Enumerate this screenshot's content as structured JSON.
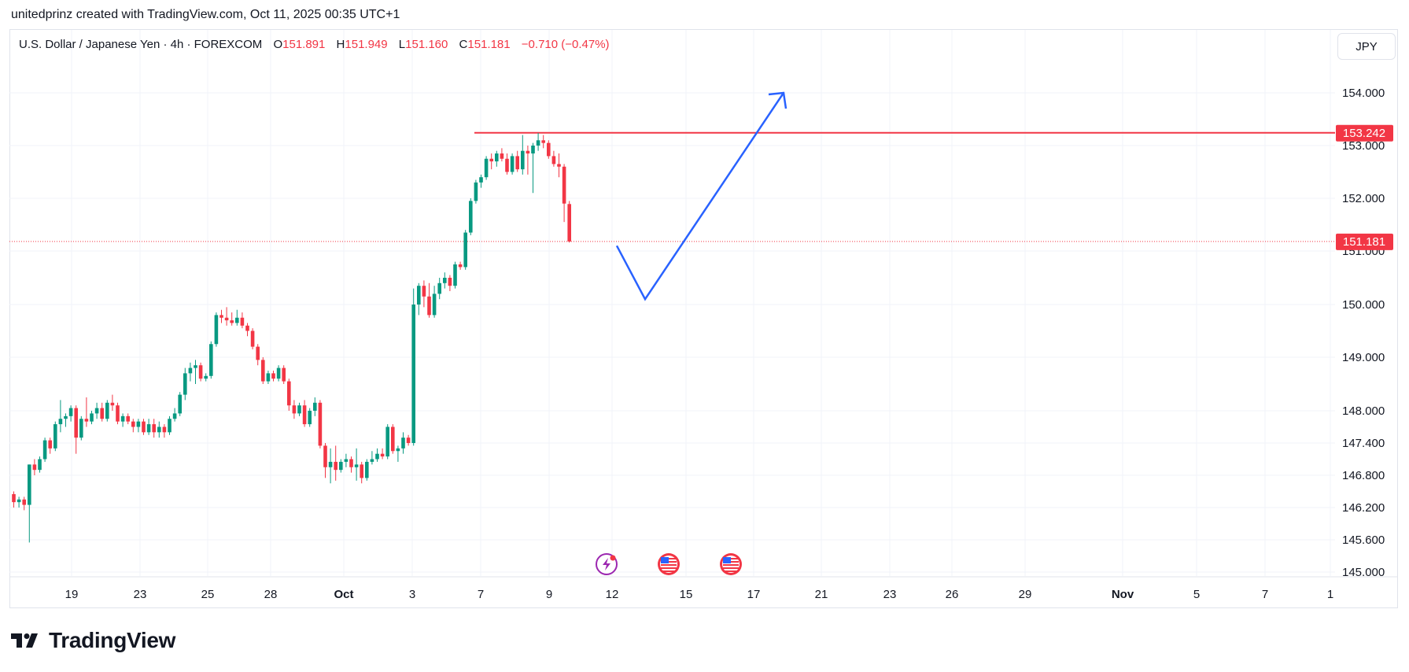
{
  "caption": "unitedprinz created with TradingView.com, Oct 11, 2025 00:35 UTC+1",
  "legend": {
    "symbol": "U.S. Dollar / Japanese Yen · 4h · FOREXCOM",
    "o_label": "O",
    "o": "151.891",
    "h_label": "H",
    "h": "151.949",
    "l_label": "L",
    "l": "151.160",
    "c_label": "C",
    "c": "151.181",
    "change": "−0.710 (−0.47%)"
  },
  "currency_button": "JPY",
  "logo": {
    "text": "TradingView"
  },
  "colors": {
    "up": "#089981",
    "down": "#f23645",
    "drawing": "#2962ff",
    "level": "#f23645",
    "grid": "#f0f3fa",
    "axis_text": "#131722"
  },
  "icons": [
    "lightning-event-icon",
    "us-flag-event-icon",
    "us-flag-event-icon"
  ],
  "chart_data": {
    "type": "candlestick",
    "timeframe": "4h",
    "y_axis": {
      "ticks": [
        "154.000",
        "153.000",
        "152.000",
        "151.000",
        "150.000",
        "149.000",
        "148.000",
        "147.400",
        "146.800",
        "146.200",
        "145.600",
        "145.000"
      ],
      "ylim": [
        145.0,
        154.3
      ]
    },
    "x_axis": {
      "ticks": [
        "19",
        "23",
        "25",
        "28",
        "Oct",
        "3",
        "7",
        "9",
        "12",
        "15",
        "17",
        "21",
        "23",
        "26",
        "29",
        "Nov",
        "5",
        "7",
        "1"
      ]
    },
    "price_labels": [
      {
        "value": "153.242",
        "kind": "horizontal-line"
      },
      {
        "value": "151.181",
        "kind": "last-price"
      }
    ],
    "drawings": {
      "resistance_level": 153.242,
      "projection_path": [
        {
          "date": "2025-10-12",
          "price": 151.1
        },
        {
          "date": "2025-10-13",
          "price": 150.1
        },
        {
          "date": "2025-10-18",
          "price": 154.0
        }
      ]
    },
    "candles": [
      {
        "o": 146.45,
        "h": 146.5,
        "l": 146.2,
        "c": 146.3
      },
      {
        "o": 146.3,
        "h": 146.4,
        "l": 146.2,
        "c": 146.35
      },
      {
        "o": 146.35,
        "h": 146.4,
        "l": 146.15,
        "c": 146.25
      },
      {
        "o": 146.25,
        "h": 147.0,
        "l": 145.55,
        "c": 147.0
      },
      {
        "o": 147.0,
        "h": 147.1,
        "l": 146.8,
        "c": 146.9
      },
      {
        "o": 146.9,
        "h": 147.15,
        "l": 146.85,
        "c": 147.1
      },
      {
        "o": 147.1,
        "h": 147.5,
        "l": 147.05,
        "c": 147.45
      },
      {
        "o": 147.45,
        "h": 147.5,
        "l": 147.2,
        "c": 147.3
      },
      {
        "o": 147.3,
        "h": 147.8,
        "l": 147.25,
        "c": 147.75
      },
      {
        "o": 147.75,
        "h": 148.2,
        "l": 147.6,
        "c": 147.85
      },
      {
        "o": 147.85,
        "h": 147.95,
        "l": 147.7,
        "c": 147.9
      },
      {
        "o": 147.9,
        "h": 148.1,
        "l": 147.8,
        "c": 148.05
      },
      {
        "o": 148.05,
        "h": 148.1,
        "l": 147.2,
        "c": 147.5
      },
      {
        "o": 147.5,
        "h": 147.9,
        "l": 147.45,
        "c": 147.85
      },
      {
        "o": 147.85,
        "h": 148.25,
        "l": 147.7,
        "c": 147.8
      },
      {
        "o": 147.8,
        "h": 148.0,
        "l": 147.75,
        "c": 147.95
      },
      {
        "o": 147.95,
        "h": 148.15,
        "l": 147.85,
        "c": 148.05
      },
      {
        "o": 148.05,
        "h": 148.15,
        "l": 147.8,
        "c": 147.85
      },
      {
        "o": 147.85,
        "h": 148.2,
        "l": 147.8,
        "c": 148.15
      },
      {
        "o": 148.15,
        "h": 148.3,
        "l": 148.0,
        "c": 148.1
      },
      {
        "o": 148.1,
        "h": 148.15,
        "l": 147.75,
        "c": 147.8
      },
      {
        "o": 147.8,
        "h": 147.95,
        "l": 147.7,
        "c": 147.9
      },
      {
        "o": 147.9,
        "h": 147.95,
        "l": 147.75,
        "c": 147.8
      },
      {
        "o": 147.8,
        "h": 147.85,
        "l": 147.6,
        "c": 147.7
      },
      {
        "o": 147.7,
        "h": 147.85,
        "l": 147.6,
        "c": 147.8
      },
      {
        "o": 147.8,
        "h": 147.85,
        "l": 147.55,
        "c": 147.6
      },
      {
        "o": 147.6,
        "h": 147.85,
        "l": 147.55,
        "c": 147.75
      },
      {
        "o": 147.75,
        "h": 147.85,
        "l": 147.5,
        "c": 147.6
      },
      {
        "o": 147.6,
        "h": 147.8,
        "l": 147.5,
        "c": 147.7
      },
      {
        "o": 147.7,
        "h": 147.75,
        "l": 147.5,
        "c": 147.6
      },
      {
        "o": 147.6,
        "h": 147.9,
        "l": 147.55,
        "c": 147.85
      },
      {
        "o": 147.85,
        "h": 148.05,
        "l": 147.8,
        "c": 147.95
      },
      {
        "o": 147.95,
        "h": 148.35,
        "l": 147.9,
        "c": 148.3
      },
      {
        "o": 148.3,
        "h": 148.8,
        "l": 148.2,
        "c": 148.7
      },
      {
        "o": 148.7,
        "h": 148.9,
        "l": 148.55,
        "c": 148.8
      },
      {
        "o": 148.8,
        "h": 148.95,
        "l": 148.5,
        "c": 148.85
      },
      {
        "o": 148.85,
        "h": 148.9,
        "l": 148.55,
        "c": 148.6
      },
      {
        "o": 148.6,
        "h": 148.7,
        "l": 148.55,
        "c": 148.65
      },
      {
        "o": 148.65,
        "h": 149.3,
        "l": 148.6,
        "c": 149.25
      },
      {
        "o": 149.25,
        "h": 149.85,
        "l": 149.2,
        "c": 149.8
      },
      {
        "o": 149.8,
        "h": 149.9,
        "l": 149.65,
        "c": 149.75
      },
      {
        "o": 149.75,
        "h": 149.95,
        "l": 149.6,
        "c": 149.7
      },
      {
        "o": 149.7,
        "h": 149.85,
        "l": 149.6,
        "c": 149.65
      },
      {
        "o": 149.65,
        "h": 149.9,
        "l": 149.6,
        "c": 149.75
      },
      {
        "o": 149.75,
        "h": 149.85,
        "l": 149.55,
        "c": 149.6
      },
      {
        "o": 149.6,
        "h": 149.65,
        "l": 149.4,
        "c": 149.5
      },
      {
        "o": 149.5,
        "h": 149.55,
        "l": 149.15,
        "c": 149.2
      },
      {
        "o": 149.2,
        "h": 149.25,
        "l": 148.85,
        "c": 148.95
      },
      {
        "o": 148.95,
        "h": 149.0,
        "l": 148.5,
        "c": 148.55
      },
      {
        "o": 148.55,
        "h": 148.75,
        "l": 148.5,
        "c": 148.7
      },
      {
        "o": 148.7,
        "h": 148.75,
        "l": 148.55,
        "c": 148.6
      },
      {
        "o": 148.6,
        "h": 148.85,
        "l": 148.55,
        "c": 148.8
      },
      {
        "o": 148.8,
        "h": 148.85,
        "l": 148.5,
        "c": 148.55
      },
      {
        "o": 148.55,
        "h": 148.6,
        "l": 148.0,
        "c": 148.1
      },
      {
        "o": 148.1,
        "h": 148.2,
        "l": 147.85,
        "c": 147.95
      },
      {
        "o": 147.95,
        "h": 148.15,
        "l": 147.9,
        "c": 148.1
      },
      {
        "o": 148.1,
        "h": 148.2,
        "l": 147.7,
        "c": 147.75
      },
      {
        "o": 147.75,
        "h": 148.05,
        "l": 147.7,
        "c": 148.0
      },
      {
        "o": 148.0,
        "h": 148.25,
        "l": 147.9,
        "c": 148.15
      },
      {
        "o": 148.15,
        "h": 148.2,
        "l": 147.3,
        "c": 147.35
      },
      {
        "o": 147.35,
        "h": 147.4,
        "l": 146.75,
        "c": 146.95
      },
      {
        "o": 146.95,
        "h": 147.3,
        "l": 146.65,
        "c": 147.05
      },
      {
        "o": 147.05,
        "h": 147.35,
        "l": 146.7,
        "c": 146.9
      },
      {
        "o": 146.9,
        "h": 147.1,
        "l": 146.85,
        "c": 147.05
      },
      {
        "o": 147.05,
        "h": 147.2,
        "l": 146.95,
        "c": 147.1
      },
      {
        "o": 147.1,
        "h": 147.15,
        "l": 146.85,
        "c": 146.95
      },
      {
        "o": 146.95,
        "h": 147.3,
        "l": 146.7,
        "c": 147.0
      },
      {
        "o": 147.0,
        "h": 147.05,
        "l": 146.65,
        "c": 146.75
      },
      {
        "o": 146.75,
        "h": 147.1,
        "l": 146.7,
        "c": 147.05
      },
      {
        "o": 147.05,
        "h": 147.25,
        "l": 147.0,
        "c": 147.1
      },
      {
        "o": 147.1,
        "h": 147.3,
        "l": 147.05,
        "c": 147.2
      },
      {
        "o": 147.2,
        "h": 147.3,
        "l": 147.1,
        "c": 147.15
      },
      {
        "o": 147.15,
        "h": 147.75,
        "l": 147.1,
        "c": 147.7
      },
      {
        "o": 147.7,
        "h": 147.75,
        "l": 147.2,
        "c": 147.25
      },
      {
        "o": 147.25,
        "h": 147.35,
        "l": 147.05,
        "c": 147.3
      },
      {
        "o": 147.3,
        "h": 147.6,
        "l": 147.2,
        "c": 147.5
      },
      {
        "o": 147.5,
        "h": 147.55,
        "l": 147.35,
        "c": 147.4
      },
      {
        "o": 147.4,
        "h": 150.3,
        "l": 147.35,
        "c": 150.0
      },
      {
        "o": 150.0,
        "h": 150.4,
        "l": 149.8,
        "c": 150.35
      },
      {
        "o": 150.35,
        "h": 150.45,
        "l": 149.95,
        "c": 150.15
      },
      {
        "o": 150.15,
        "h": 150.4,
        "l": 149.75,
        "c": 149.8
      },
      {
        "o": 149.8,
        "h": 150.35,
        "l": 149.75,
        "c": 150.2
      },
      {
        "o": 150.2,
        "h": 150.5,
        "l": 150.1,
        "c": 150.4
      },
      {
        "o": 150.4,
        "h": 150.6,
        "l": 150.3,
        "c": 150.5
      },
      {
        "o": 150.5,
        "h": 150.55,
        "l": 150.25,
        "c": 150.35
      },
      {
        "o": 150.35,
        "h": 150.8,
        "l": 150.3,
        "c": 150.75
      },
      {
        "o": 150.75,
        "h": 150.8,
        "l": 150.65,
        "c": 150.7
      },
      {
        "o": 150.7,
        "h": 151.4,
        "l": 150.65,
        "c": 151.35
      },
      {
        "o": 151.35,
        "h": 152.0,
        "l": 151.3,
        "c": 151.95
      },
      {
        "o": 151.95,
        "h": 152.35,
        "l": 151.9,
        "c": 152.3
      },
      {
        "o": 152.3,
        "h": 152.45,
        "l": 152.2,
        "c": 152.4
      },
      {
        "o": 152.4,
        "h": 152.8,
        "l": 152.35,
        "c": 152.75
      },
      {
        "o": 152.75,
        "h": 152.85,
        "l": 152.55,
        "c": 152.7
      },
      {
        "o": 152.7,
        "h": 152.9,
        "l": 152.6,
        "c": 152.85
      },
      {
        "o": 152.85,
        "h": 152.95,
        "l": 152.7,
        "c": 152.75
      },
      {
        "o": 152.75,
        "h": 152.85,
        "l": 152.45,
        "c": 152.5
      },
      {
        "o": 152.5,
        "h": 152.85,
        "l": 152.45,
        "c": 152.8
      },
      {
        "o": 152.8,
        "h": 152.9,
        "l": 152.5,
        "c": 152.55
      },
      {
        "o": 152.55,
        "h": 153.2,
        "l": 152.45,
        "c": 152.9
      },
      {
        "o": 152.9,
        "h": 153.0,
        "l": 152.45,
        "c": 152.85
      },
      {
        "o": 152.85,
        "h": 153.05,
        "l": 152.1,
        "c": 153.0
      },
      {
        "o": 153.0,
        "h": 153.24,
        "l": 152.9,
        "c": 153.1
      },
      {
        "o": 153.1,
        "h": 153.2,
        "l": 152.95,
        "c": 153.05
      },
      {
        "o": 153.05,
        "h": 153.1,
        "l": 152.75,
        "c": 152.8
      },
      {
        "o": 152.8,
        "h": 152.9,
        "l": 152.6,
        "c": 152.65
      },
      {
        "o": 152.65,
        "h": 152.85,
        "l": 152.4,
        "c": 152.6
      },
      {
        "o": 152.6,
        "h": 152.65,
        "l": 151.55,
        "c": 151.9
      },
      {
        "o": 151.891,
        "h": 151.949,
        "l": 151.16,
        "c": 151.181
      }
    ]
  }
}
